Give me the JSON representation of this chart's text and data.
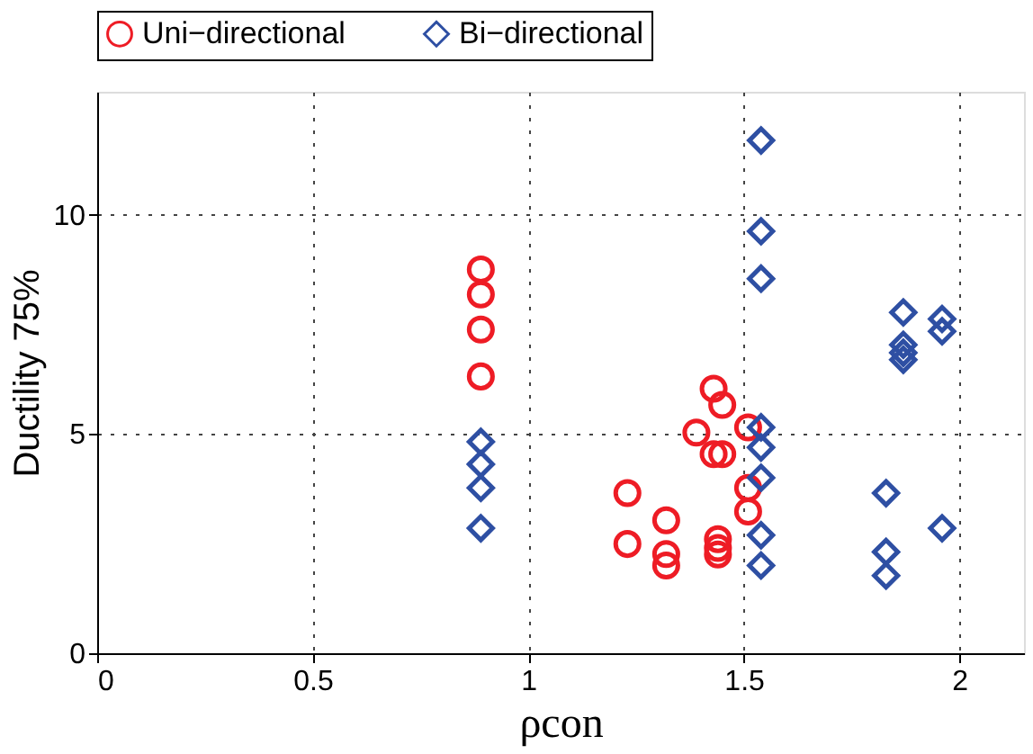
{
  "chart_data": {
    "type": "scatter",
    "xlabel": "ρcon",
    "ylabel": "Ductility 75%",
    "xlim": [
      0,
      2.15
    ],
    "ylim": [
      0,
      12.8
    ],
    "xticks": [
      0,
      0.5,
      1,
      1.5,
      2
    ],
    "yticks": [
      0,
      5,
      10
    ],
    "grid": true,
    "legend": "top",
    "series": [
      {
        "name": "Uni−directional",
        "color": "#ee1c25",
        "marker": "circle",
        "x": [
          0.89,
          0.89,
          0.89,
          0.89,
          1.23,
          1.23,
          1.32,
          1.32,
          1.32,
          1.44,
          1.44,
          1.44,
          1.43,
          1.45,
          1.39,
          1.43,
          1.45,
          1.51,
          1.51,
          1.51
        ],
        "values": [
          8.75,
          8.18,
          7.38,
          6.31,
          3.65,
          2.49,
          3.03,
          2.26,
          2.0,
          2.6,
          2.4,
          2.25,
          6.03,
          5.66,
          5.03,
          4.54,
          4.54,
          5.15,
          3.77,
          3.23
        ]
      },
      {
        "name": "Bi−directional",
        "color": "#2e4fa3",
        "marker": "diamond",
        "x": [
          0.89,
          0.89,
          0.89,
          0.89,
          1.54,
          1.54,
          1.54,
          1.54,
          1.54,
          1.54,
          1.54,
          1.54,
          1.87,
          1.87,
          1.87,
          1.87,
          1.96,
          1.96,
          1.83,
          1.83,
          1.83,
          1.96
        ],
        "values": [
          4.82,
          4.31,
          3.77,
          2.85,
          11.69,
          9.62,
          8.54,
          5.15,
          4.69,
          4.0,
          2.69,
          2.0,
          7.77,
          7.03,
          6.85,
          6.69,
          7.62,
          7.34,
          3.65,
          2.31,
          1.77,
          2.85
        ]
      }
    ]
  }
}
